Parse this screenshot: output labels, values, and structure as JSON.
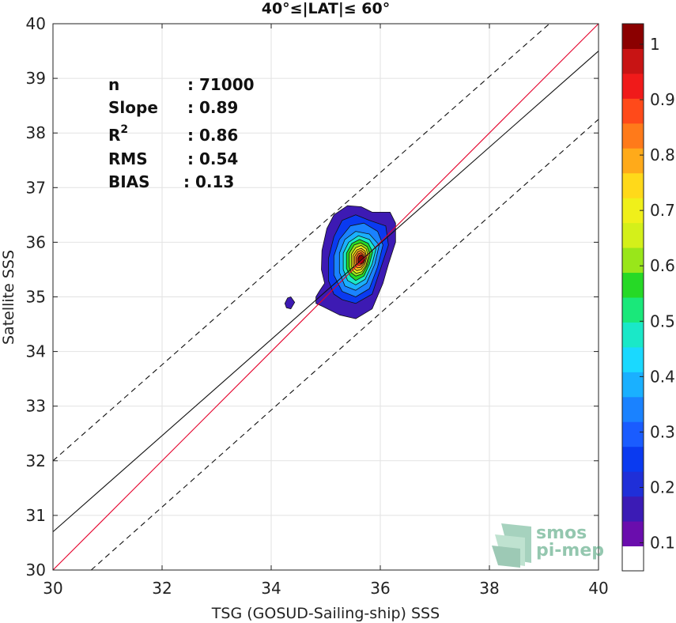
{
  "chart_data": {
    "type": "scatter",
    "title": "40°≤|LAT|≤ 60°",
    "xlabel": "TSG (GOSUD-Sailing-ship) SSS",
    "ylabel": "Satellite SSS",
    "xlim": [
      30,
      40
    ],
    "ylim": [
      30,
      40
    ],
    "xticks": [
      "30",
      "32",
      "34",
      "36",
      "38",
      "40"
    ],
    "yticks": [
      "30",
      "31",
      "32",
      "33",
      "34",
      "35",
      "36",
      "37",
      "38",
      "39",
      "40"
    ],
    "grid": true,
    "stats": [
      {
        "label": "n",
        "value": ": 71000"
      },
      {
        "label": "Slope",
        "value": ": 0.89"
      },
      {
        "label": "R",
        "sup": "2",
        "value": ": 0.86"
      },
      {
        "label": "RMS",
        "value": ": 0.54"
      },
      {
        "label": "BIAS",
        "value": ": 0.13"
      }
    ],
    "lines": [
      {
        "style": "red",
        "x": [
          30,
          40
        ],
        "y": [
          30,
          40
        ]
      },
      {
        "style": "black",
        "x": [
          30,
          40
        ],
        "y": [
          30.7,
          39.5
        ]
      },
      {
        "style": "dashed",
        "x": [
          30,
          39.1
        ],
        "y": [
          32,
          40
        ]
      },
      {
        "style": "dashed",
        "x": [
          30.7,
          40
        ],
        "y": [
          30,
          38.25
        ]
      }
    ],
    "density": {
      "peak": [
        35.65,
        35.68
      ],
      "levels": [
        {
          "level": 0.05,
          "color": "#3D1AB3",
          "polygon": [
            [
              34.82,
              35.0
            ],
            [
              34.88,
              35.1
            ],
            [
              34.98,
              35.25
            ],
            [
              34.92,
              35.5
            ],
            [
              34.93,
              35.85
            ],
            [
              35.02,
              36.25
            ],
            [
              35.15,
              36.5
            ],
            [
              35.4,
              36.67
            ],
            [
              35.65,
              36.65
            ],
            [
              35.85,
              36.55
            ],
            [
              36.18,
              36.55
            ],
            [
              36.28,
              36.35
            ],
            [
              36.28,
              36.0
            ],
            [
              36.15,
              35.6
            ],
            [
              36.05,
              35.25
            ],
            [
              35.85,
              34.78
            ],
            [
              35.55,
              34.6
            ],
            [
              35.25,
              34.67
            ],
            [
              34.95,
              34.82
            ],
            [
              34.82,
              34.88
            ]
          ]
        },
        {
          "level": 0.15,
          "color": "#0A3AF0",
          "polygon": [
            [
              35.05,
              35.3
            ],
            [
              35.05,
              35.7
            ],
            [
              35.15,
              36.1
            ],
            [
              35.3,
              36.4
            ],
            [
              35.55,
              36.5
            ],
            [
              35.8,
              36.4
            ],
            [
              36.1,
              36.3
            ],
            [
              36.15,
              35.95
            ],
            [
              36.0,
              35.5
            ],
            [
              35.85,
              35.05
            ],
            [
              35.55,
              34.88
            ],
            [
              35.3,
              34.95
            ],
            [
              35.15,
              35.05
            ]
          ]
        },
        {
          "level": 0.25,
          "color": "#1A82FF",
          "polygon": [
            [
              35.15,
              35.4
            ],
            [
              35.15,
              35.75
            ],
            [
              35.25,
              36.05
            ],
            [
              35.45,
              36.3
            ],
            [
              35.7,
              36.35
            ],
            [
              35.95,
              36.2
            ],
            [
              36.05,
              35.95
            ],
            [
              35.95,
              35.55
            ],
            [
              35.8,
              35.15
            ],
            [
              35.55,
              35.0
            ],
            [
              35.3,
              35.1
            ]
          ]
        },
        {
          "level": 0.35,
          "color": "#1AB0FF",
          "polygon": [
            [
              35.25,
              35.45
            ],
            [
              35.25,
              35.8
            ],
            [
              35.35,
              36.05
            ],
            [
              35.55,
              36.2
            ],
            [
              35.8,
              36.15
            ],
            [
              35.98,
              35.95
            ],
            [
              35.9,
              35.6
            ],
            [
              35.75,
              35.25
            ],
            [
              35.55,
              35.12
            ],
            [
              35.35,
              35.2
            ]
          ]
        },
        {
          "level": 0.45,
          "color": "#1AE8C8",
          "polygon": [
            [
              35.32,
              35.5
            ],
            [
              35.32,
              35.8
            ],
            [
              35.42,
              36.0
            ],
            [
              35.6,
              36.12
            ],
            [
              35.8,
              36.05
            ],
            [
              35.92,
              35.88
            ],
            [
              35.85,
              35.6
            ],
            [
              35.72,
              35.32
            ],
            [
              35.55,
              35.22
            ],
            [
              35.4,
              35.3
            ]
          ]
        },
        {
          "level": 0.55,
          "color": "#26D926",
          "polygon": [
            [
              35.38,
              35.52
            ],
            [
              35.38,
              35.8
            ],
            [
              35.48,
              35.98
            ],
            [
              35.62,
              36.05
            ],
            [
              35.78,
              35.98
            ],
            [
              35.86,
              35.82
            ],
            [
              35.8,
              35.6
            ],
            [
              35.7,
              35.38
            ],
            [
              35.55,
              35.3
            ],
            [
              35.45,
              35.38
            ]
          ]
        },
        {
          "level": 0.62,
          "color": "#99E61A",
          "polygon": [
            [
              35.43,
              35.55
            ],
            [
              35.43,
              35.8
            ],
            [
              35.52,
              35.95
            ],
            [
              35.64,
              35.99
            ],
            [
              35.76,
              35.92
            ],
            [
              35.81,
              35.78
            ],
            [
              35.76,
              35.58
            ],
            [
              35.67,
              35.42
            ],
            [
              35.55,
              35.38
            ],
            [
              35.47,
              35.44
            ]
          ]
        },
        {
          "level": 0.68,
          "color": "#F0F01A",
          "polygon": [
            [
              35.47,
              35.57
            ],
            [
              35.47,
              35.78
            ],
            [
              35.55,
              35.9
            ],
            [
              35.65,
              35.94
            ],
            [
              35.74,
              35.88
            ],
            [
              35.78,
              35.75
            ],
            [
              35.74,
              35.58
            ],
            [
              35.66,
              35.46
            ],
            [
              35.56,
              35.43
            ],
            [
              35.5,
              35.48
            ]
          ]
        },
        {
          "level": 0.74,
          "color": "#FFC21A",
          "polygon": [
            [
              35.5,
              35.58
            ],
            [
              35.5,
              35.76
            ],
            [
              35.57,
              35.86
            ],
            [
              35.65,
              35.89
            ],
            [
              35.72,
              35.84
            ],
            [
              35.75,
              35.73
            ],
            [
              35.72,
              35.6
            ],
            [
              35.65,
              35.5
            ],
            [
              35.57,
              35.48
            ],
            [
              35.52,
              35.52
            ]
          ]
        },
        {
          "level": 0.8,
          "color": "#FF8A1A",
          "polygon": [
            [
              35.53,
              35.6
            ],
            [
              35.53,
              35.74
            ],
            [
              35.59,
              35.83
            ],
            [
              35.65,
              35.85
            ],
            [
              35.71,
              35.8
            ],
            [
              35.73,
              35.71
            ],
            [
              35.7,
              35.61
            ],
            [
              35.64,
              35.54
            ],
            [
              35.58,
              35.53
            ],
            [
              35.55,
              35.56
            ]
          ]
        },
        {
          "level": 0.86,
          "color": "#F04A1A",
          "polygon": [
            [
              35.56,
              35.62
            ],
            [
              35.56,
              35.72
            ],
            [
              35.6,
              35.79
            ],
            [
              35.65,
              35.81
            ],
            [
              35.69,
              35.77
            ],
            [
              35.71,
              35.7
            ],
            [
              35.68,
              35.62
            ],
            [
              35.63,
              35.58
            ],
            [
              35.59,
              35.58
            ]
          ]
        },
        {
          "level": 0.94,
          "color": "#C81414",
          "polygon": [
            [
              35.59,
              35.64
            ],
            [
              35.59,
              35.71
            ],
            [
              35.62,
              35.76
            ],
            [
              35.66,
              35.77
            ],
            [
              35.69,
              35.73
            ],
            [
              35.69,
              35.67
            ],
            [
              35.66,
              35.62
            ],
            [
              35.62,
              35.61
            ]
          ]
        }
      ],
      "islands": [
        {
          "level": 0.05,
          "color": "#3D1AB3",
          "polygon": [
            [
              34.25,
              34.88
            ],
            [
              34.3,
              34.98
            ],
            [
              34.36,
              35.0
            ],
            [
              34.43,
              34.9
            ],
            [
              34.36,
              34.78
            ],
            [
              34.28,
              34.8
            ]
          ]
        }
      ]
    },
    "colorbar": {
      "ticks": [
        "0.1",
        "0.2",
        "0.3",
        "0.4",
        "0.5",
        "0.6",
        "0.7",
        "0.8",
        "0.9",
        "1"
      ],
      "colors": [
        "#ffffff",
        "#6A0DAD",
        "#3B1BB5",
        "#1F2FD8",
        "#0A3AF0",
        "#1A5CFF",
        "#1A82FF",
        "#1AB0FF",
        "#1AD9FF",
        "#1AE8C8",
        "#1AE87A",
        "#26D926",
        "#99E61A",
        "#D4F01A",
        "#F0F01A",
        "#FFD91A",
        "#FFAA1A",
        "#FF7A1A",
        "#FF4A1A",
        "#F01A1A",
        "#C81414",
        "#8B0000"
      ]
    },
    "watermark": {
      "line1": "smos",
      "line2": "pi-mep"
    }
  }
}
